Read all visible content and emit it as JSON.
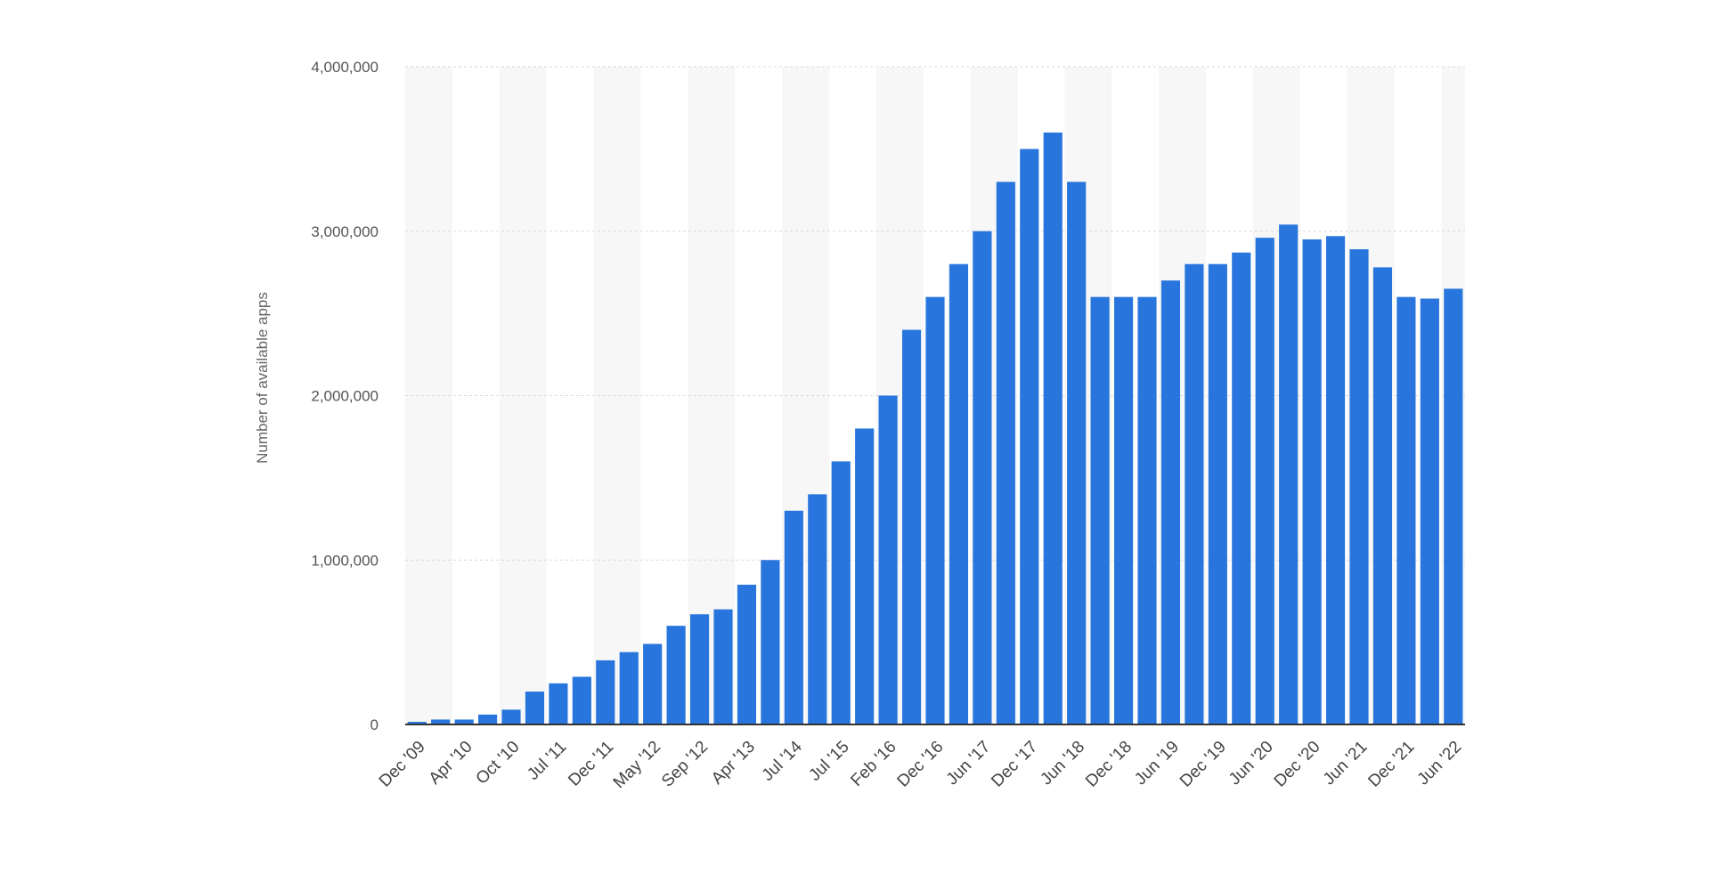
{
  "chart_data": {
    "type": "bar",
    "title": "",
    "xlabel": "",
    "ylabel": "Number of available apps",
    "ylim": [
      0,
      4000000
    ],
    "yticks": [
      0,
      1000000,
      2000000,
      3000000,
      4000000
    ],
    "ytick_labels": [
      "0",
      "1,000,000",
      "2,000,000",
      "3,000,000",
      "4,000,000"
    ],
    "xtick_labels": [
      "Dec '09",
      "Apr '10",
      "Oct '10",
      "Jul '11",
      "Dec '11",
      "May '12",
      "Sep '12",
      "Apr '13",
      "Jul '14",
      "Jul '15",
      "Feb '16",
      "Dec '16",
      "Jun '17",
      "Dec '17",
      "Jun '18",
      "Dec '18",
      "Jun '19",
      "Dec '19",
      "Jun '20",
      "Dec '20",
      "Jun '21",
      "Dec '21",
      "Jun '22"
    ],
    "values": [
      16000,
      30000,
      30000,
      60000,
      90000,
      200000,
      250000,
      290000,
      390000,
      440000,
      490000,
      600000,
      670000,
      700000,
      850000,
      1000000,
      1300000,
      1400000,
      1600000,
      1800000,
      2000000,
      2400000,
      2600000,
      2800000,
      3000000,
      3300000,
      3500000,
      3600000,
      3300000,
      2600000,
      2600000,
      2600000,
      2700000,
      2800000,
      2800000,
      2870000,
      2960000,
      3040000,
      2950000,
      2970000,
      2890000,
      2780000,
      2600000,
      2590000,
      2650000
    ],
    "bar_color": "#2876dd",
    "band_color": "#f7f7f7",
    "grid": true,
    "legend": "none"
  }
}
